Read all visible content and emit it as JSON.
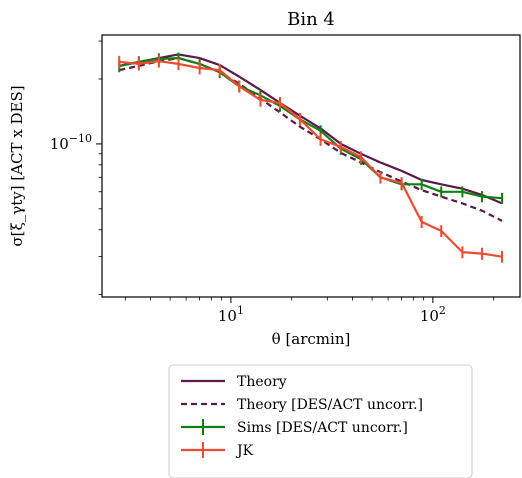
{
  "chart_data": {
    "type": "line",
    "title": "Bin 4",
    "xlabel": "θ [arcmin]",
    "ylabel": "σ[ξ_γty] [ACT x DES]",
    "xscale": "log",
    "yscale": "log",
    "xlim": [
      2.3,
      270
    ],
    "ylim": [
      1.95e-11,
      3.2e-10
    ],
    "x_ticks": [
      {
        "value": 10,
        "base": "10",
        "exp": "1"
      },
      {
        "value": 100,
        "base": "10",
        "exp": "2"
      }
    ],
    "y_ticks": [
      {
        "value": 1e-10,
        "base": "10",
        "exp": "−10"
      }
    ],
    "grid": false,
    "legend_position": "below",
    "series": [
      {
        "name": "Theory",
        "color": "#5a1a4a",
        "style": "solid",
        "x": [
          2.8,
          3.5,
          4.4,
          5.5,
          7.0,
          8.8,
          11.0,
          14.0,
          17.5,
          22.0,
          27.8,
          35.0,
          44.0,
          55.0,
          70.0,
          88.0,
          110.0,
          140.0,
          175.0,
          220.0
        ],
        "y": [
          2.3e-10,
          2.4e-10,
          2.5e-10,
          2.6e-10,
          2.5e-10,
          2.32e-10,
          2.05e-10,
          1.78e-10,
          1.55e-10,
          1.35e-10,
          1.18e-10,
          1e-10,
          9e-11,
          8.2e-11,
          7.5e-11,
          6.8e-11,
          6.5e-11,
          6.2e-11,
          5.8e-11,
          5.3e-11
        ]
      },
      {
        "name": "Theory [DES/ACT uncorr.]",
        "color": "#5a1a4a",
        "style": "dashed",
        "x": [
          2.8,
          3.5,
          4.4,
          5.5,
          7.0,
          8.8,
          11.0,
          14.0,
          17.5,
          22.0,
          27.8,
          35.0,
          44.0,
          55.0,
          70.0,
          88.0,
          110.0,
          140.0,
          175.0,
          220.0
        ],
        "y": [
          2.2e-10,
          2.3e-10,
          2.42e-10,
          2.5e-10,
          2.35e-10,
          2.15e-10,
          1.9e-10,
          1.62e-10,
          1.4e-10,
          1.2e-10,
          1.05e-10,
          9.1e-11,
          8.2e-11,
          7.4e-11,
          6.7e-11,
          6.1e-11,
          5.7e-11,
          5.3e-11,
          4.9e-11,
          4.4e-11
        ]
      },
      {
        "name": "Sims [DES/ACT uncorr.]",
        "color": "#118011",
        "style": "errorbar",
        "x": [
          2.8,
          3.5,
          4.4,
          5.5,
          7.0,
          8.8,
          11.0,
          14.0,
          17.5,
          22.0,
          27.8,
          35.0,
          44.0,
          55.0,
          70.0,
          88.0,
          110.0,
          140.0,
          175.0,
          220.0
        ],
        "y": [
          2.3e-10,
          2.4e-10,
          2.48e-10,
          2.5e-10,
          2.35e-10,
          2.15e-10,
          1.85e-10,
          1.68e-10,
          1.5e-10,
          1.3e-10,
          1.15e-10,
          9.5e-11,
          8.5e-11,
          7e-11,
          6.5e-11,
          6.5e-11,
          6e-11,
          6e-11,
          5.7e-11,
          5.6e-11
        ],
        "yerr": [
          1.5e-11,
          1.5e-11,
          1.5e-11,
          1.5e-11,
          1.4e-11,
          1.3e-11,
          1.1e-11,
          1e-11,
          9e-12,
          8e-12,
          7e-12,
          6e-12,
          5e-12,
          4.5e-12,
          4e-12,
          4e-12,
          3.5e-12,
          3.5e-12,
          3.4e-12,
          3.3e-12
        ]
      },
      {
        "name": "JK",
        "color": "#f04a30",
        "style": "errorbar",
        "x": [
          2.8,
          3.5,
          4.4,
          5.5,
          7.0,
          8.8,
          11.0,
          14.0,
          17.5,
          22.0,
          27.8,
          35.0,
          44.0,
          55.0,
          70.0,
          88.0,
          110.0,
          140.0,
          175.0,
          220.0
        ],
        "y": [
          2.4e-10,
          2.35e-10,
          2.42e-10,
          2.35e-10,
          2.25e-10,
          2.2e-10,
          1.85e-10,
          1.6e-10,
          1.55e-10,
          1.3e-10,
          1.05e-10,
          9.7e-11,
          8.7e-11,
          7e-11,
          6.6e-11,
          4.35e-11,
          3.95e-11,
          3.15e-11,
          3.1e-11,
          3e-11
        ],
        "yerr": [
          1.6e-11,
          1.6e-11,
          1.6e-11,
          1.5e-11,
          1.5e-11,
          1.5e-11,
          1.2e-11,
          1.1e-11,
          1e-11,
          9e-12,
          7e-12,
          6e-12,
          5.5e-12,
          4.5e-12,
          4.2e-12,
          2.8e-12,
          2.5e-12,
          2e-12,
          2e-12,
          1.9e-12
        ]
      }
    ]
  }
}
